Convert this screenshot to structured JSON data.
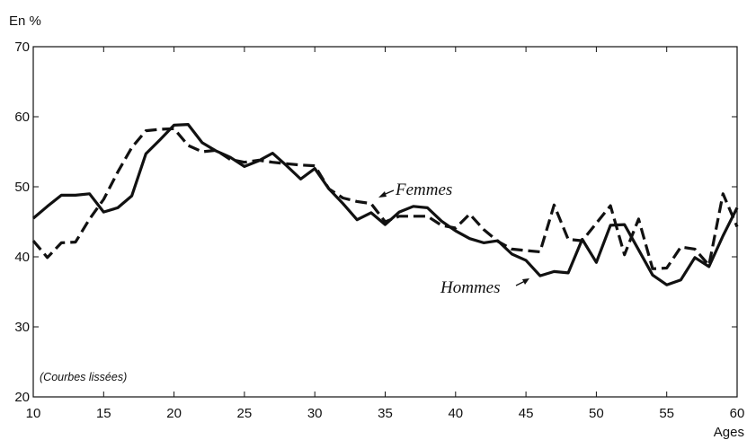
{
  "chart_data": {
    "type": "line",
    "ylabel": "En %",
    "xlabel": "Ages",
    "note": "(Courbes lissées)",
    "xlim": [
      10,
      60
    ],
    "ylim": [
      20,
      70
    ],
    "xticks": [
      10,
      15,
      20,
      25,
      30,
      35,
      40,
      45,
      50,
      55,
      60
    ],
    "yticks": [
      20,
      30,
      40,
      50,
      60,
      70
    ],
    "grid": false,
    "series": [
      {
        "name": "Hommes",
        "style": "solid",
        "color": "#111111",
        "x": [
          10,
          11,
          12,
          13,
          14,
          15,
          16,
          17,
          18,
          19,
          20,
          21,
          22,
          23,
          24,
          25,
          26,
          27,
          28,
          29,
          30,
          31,
          32,
          33,
          34,
          35,
          36,
          37,
          38,
          39,
          40,
          41,
          42,
          43,
          44,
          45,
          46,
          47,
          48,
          49,
          50,
          51,
          52,
          53,
          54,
          55,
          56,
          57,
          58,
          59,
          60
        ],
        "values": [
          45.5,
          47.2,
          48.8,
          48.8,
          49.0,
          46.4,
          47.0,
          48.7,
          54.7,
          56.7,
          58.8,
          58.9,
          56.3,
          55.1,
          54.2,
          52.9,
          53.7,
          54.8,
          53.0,
          51.1,
          52.6,
          49.7,
          47.6,
          45.3,
          46.3,
          44.6,
          46.4,
          47.2,
          47.0,
          45.1,
          43.7,
          42.6,
          42.0,
          42.3,
          40.4,
          39.5,
          37.3,
          37.9,
          37.7,
          42.5,
          39.2,
          44.5,
          44.6,
          41.0,
          37.4,
          36.0,
          36.7,
          39.9,
          38.6,
          43.0,
          47.0
        ]
      },
      {
        "name": "Femmes",
        "style": "dashed",
        "color": "#111111",
        "x": [
          10,
          11,
          12,
          13,
          14,
          15,
          16,
          17,
          18,
          19,
          20,
          21,
          22,
          23,
          24,
          25,
          26,
          27,
          28,
          29,
          30,
          31,
          32,
          33,
          34,
          35,
          36,
          37,
          38,
          39,
          40,
          41,
          42,
          43,
          44,
          45,
          46,
          47,
          48,
          49,
          50,
          51,
          52,
          53,
          54,
          55,
          56,
          57,
          58,
          59,
          60
        ],
        "values": [
          42.3,
          39.9,
          42.0,
          42.1,
          45.4,
          48.2,
          52.1,
          55.6,
          58.0,
          58.2,
          58.3,
          55.9,
          55.0,
          55.2,
          53.9,
          53.5,
          53.8,
          53.5,
          53.3,
          53.1,
          53.0,
          49.7,
          48.4,
          47.9,
          47.6,
          45.0,
          45.8,
          45.8,
          45.8,
          44.5,
          44.1,
          46.1,
          43.9,
          42.2,
          41.1,
          40.9,
          40.7,
          47.4,
          42.5,
          42.3,
          44.8,
          47.3,
          40.3,
          45.4,
          38.3,
          38.4,
          41.4,
          41.1,
          38.8,
          49.0,
          44.3
        ]
      }
    ]
  }
}
